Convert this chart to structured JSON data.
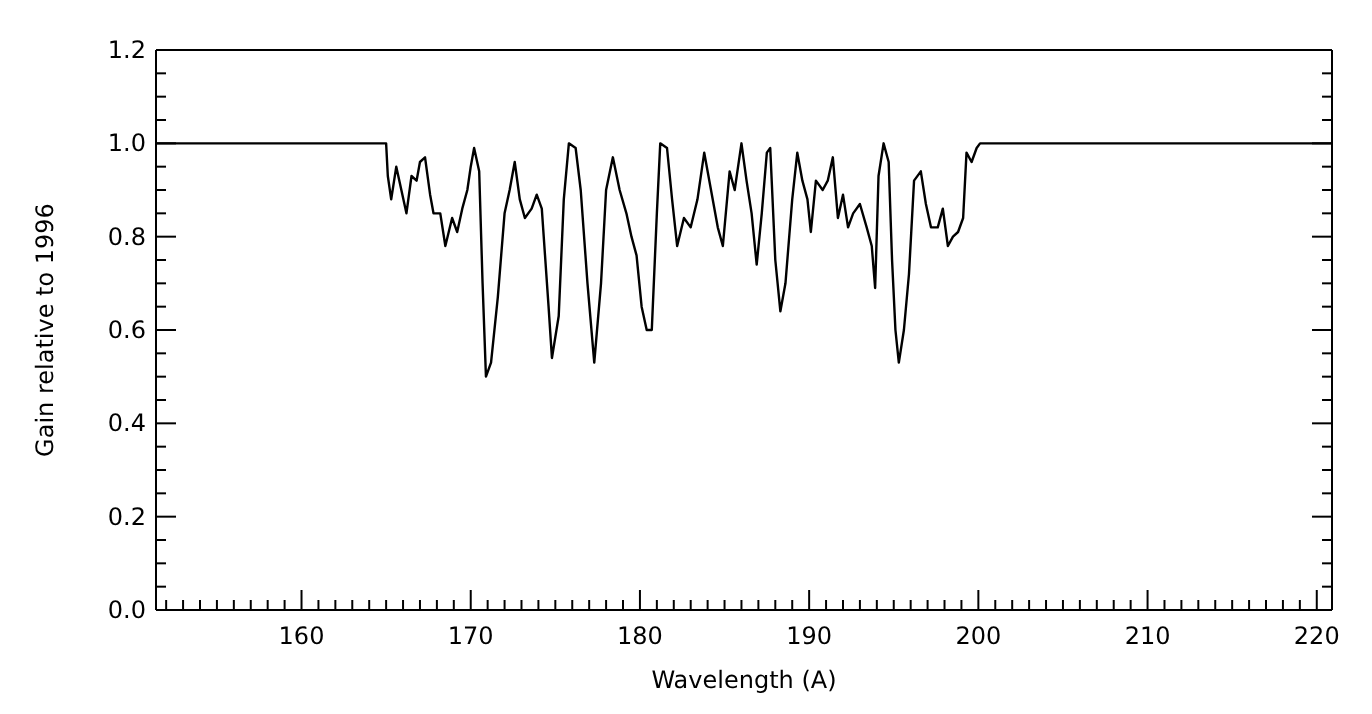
{
  "chart_data": {
    "type": "line",
    "xlabel": "Wavelength (A)",
    "ylabel": "Gain relative to 1996",
    "xlim": [
      151.4,
      220.9
    ],
    "ylim": [
      0,
      1.2
    ],
    "xticks": [
      {
        "value": 152,
        "label": null
      },
      {
        "value": 153,
        "label": null
      },
      {
        "value": 154,
        "label": null
      },
      {
        "value": 155,
        "label": null
      },
      {
        "value": 156,
        "label": null
      },
      {
        "value": 157,
        "label": null
      },
      {
        "value": 158,
        "label": null
      },
      {
        "value": 159,
        "label": null
      },
      160,
      {
        "value": 161,
        "label": null
      },
      {
        "value": 162,
        "label": null
      },
      {
        "value": 163,
        "label": null
      },
      {
        "value": 164,
        "label": null
      },
      {
        "value": 165,
        "label": null
      },
      {
        "value": 166,
        "label": null
      },
      {
        "value": 167,
        "label": null
      },
      {
        "value": 168,
        "label": null
      },
      {
        "value": 169,
        "label": null
      },
      170,
      {
        "value": 171,
        "label": null
      },
      {
        "value": 172,
        "label": null
      },
      {
        "value": 173,
        "label": null
      },
      {
        "value": 174,
        "label": null
      },
      {
        "value": 175,
        "label": null
      },
      {
        "value": 176,
        "label": null
      },
      {
        "value": 177,
        "label": null
      },
      {
        "value": 178,
        "label": null
      },
      {
        "value": 179,
        "label": null
      },
      180,
      {
        "value": 181,
        "label": null
      },
      {
        "value": 182,
        "label": null
      },
      {
        "value": 183,
        "label": null
      },
      {
        "value": 184,
        "label": null
      },
      {
        "value": 185,
        "label": null
      },
      {
        "value": 186,
        "label": null
      },
      {
        "value": 187,
        "label": null
      },
      {
        "value": 188,
        "label": null
      },
      {
        "value": 189,
        "label": null
      },
      190,
      {
        "value": 191,
        "label": null
      },
      {
        "value": 192,
        "label": null
      },
      {
        "value": 193,
        "label": null
      },
      {
        "value": 194,
        "label": null
      },
      {
        "value": 195,
        "label": null
      },
      {
        "value": 196,
        "label": null
      },
      {
        "value": 197,
        "label": null
      },
      {
        "value": 198,
        "label": null
      },
      {
        "value": 199,
        "label": null
      },
      200,
      {
        "value": 201,
        "label": null
      },
      {
        "value": 202,
        "label": null
      },
      {
        "value": 203,
        "label": null
      },
      {
        "value": 204,
        "label": null
      },
      {
        "value": 205,
        "label": null
      },
      {
        "value": 206,
        "label": null
      },
      {
        "value": 207,
        "label": null
      },
      {
        "value": 208,
        "label": null
      },
      {
        "value": 209,
        "label": null
      },
      210,
      {
        "value": 211,
        "label": null
      },
      {
        "value": 212,
        "label": null
      },
      {
        "value": 213,
        "label": null
      },
      {
        "value": 214,
        "label": null
      },
      {
        "value": 215,
        "label": null
      },
      {
        "value": 216,
        "label": null
      },
      {
        "value": 217,
        "label": null
      },
      {
        "value": 218,
        "label": null
      },
      {
        "value": 219,
        "label": null
      },
      220
    ],
    "yticks": [
      {
        "value": 0,
        "label": "0.0"
      },
      {
        "value": 0.05,
        "label": null
      },
      {
        "value": 0.1,
        "label": null
      },
      {
        "value": 0.15,
        "label": null
      },
      0.2,
      {
        "value": 0.25,
        "label": null
      },
      {
        "value": 0.3,
        "label": null
      },
      {
        "value": 0.35,
        "label": null
      },
      0.4,
      {
        "value": 0.45,
        "label": null
      },
      {
        "value": 0.5,
        "label": null
      },
      {
        "value": 0.55,
        "label": null
      },
      0.6,
      {
        "value": 0.65,
        "label": null
      },
      {
        "value": 0.7,
        "label": null
      },
      {
        "value": 0.75,
        "label": null
      },
      0.8,
      {
        "value": 0.85,
        "label": null
      },
      {
        "value": 0.9,
        "label": null
      },
      {
        "value": 0.95,
        "label": null
      },
      {
        "value": 1,
        "label": "1.0"
      },
      {
        "value": 1.05,
        "label": null
      },
      {
        "value": 1.1,
        "label": null
      },
      {
        "value": 1.15,
        "label": null
      },
      1.2
    ],
    "marker": "none",
    "line_style": "solid",
    "series": [
      {
        "color": "#000000",
        "x": [
          151.4,
          165.0,
          165.1,
          165.3,
          165.6,
          165.9,
          166.2,
          166.5,
          166.8,
          167.0,
          167.3,
          167.6,
          167.8,
          168.2,
          168.5,
          168.9,
          169.2,
          169.5,
          169.8,
          170.0,
          170.2,
          170.5,
          170.7,
          170.9,
          171.2,
          171.6,
          172.0,
          172.3,
          172.6,
          172.9,
          173.2,
          173.6,
          173.9,
          174.2,
          174.6,
          174.8,
          175.2,
          175.5,
          175.8,
          176.2,
          176.5,
          176.9,
          177.3,
          177.7,
          178.0,
          178.4,
          178.8,
          179.2,
          179.5,
          179.8,
          180.1,
          180.4,
          180.7,
          181.0,
          181.2,
          181.6,
          181.9,
          182.2,
          182.6,
          183.0,
          183.4,
          183.8,
          184.2,
          184.6,
          184.9,
          185.3,
          185.6,
          186.0,
          186.3,
          186.6,
          186.9,
          187.2,
          187.5,
          187.7,
          188.0,
          188.3,
          188.6,
          189.0,
          189.3,
          189.6,
          189.9,
          190.1,
          190.4,
          190.8,
          191.1,
          191.4,
          191.7,
          192.0,
          192.3,
          192.6,
          193.0,
          193.4,
          193.7,
          193.9,
          194.1,
          194.4,
          194.7,
          194.9,
          195.1,
          195.3,
          195.6,
          195.9,
          196.2,
          196.6,
          196.9,
          197.2,
          197.6,
          197.9,
          198.2,
          198.5,
          198.8,
          199.1,
          199.3,
          199.6,
          199.9,
          200.1,
          220.9
        ],
        "values": [
          1.0,
          1.0,
          0.93,
          0.88,
          0.95,
          0.9,
          0.85,
          0.93,
          0.92,
          0.96,
          0.97,
          0.89,
          0.85,
          0.85,
          0.78,
          0.84,
          0.81,
          0.86,
          0.9,
          0.95,
          0.99,
          0.94,
          0.7,
          0.5,
          0.53,
          0.67,
          0.85,
          0.9,
          0.96,
          0.88,
          0.84,
          0.86,
          0.89,
          0.86,
          0.65,
          0.54,
          0.63,
          0.88,
          1.0,
          0.99,
          0.9,
          0.7,
          0.53,
          0.7,
          0.9,
          0.97,
          0.9,
          0.85,
          0.8,
          0.76,
          0.65,
          0.6,
          0.6,
          0.85,
          1.0,
          0.99,
          0.88,
          0.78,
          0.84,
          0.82,
          0.88,
          0.98,
          0.9,
          0.82,
          0.78,
          0.94,
          0.9,
          1.0,
          0.92,
          0.85,
          0.74,
          0.85,
          0.98,
          0.99,
          0.75,
          0.64,
          0.7,
          0.88,
          0.98,
          0.92,
          0.88,
          0.81,
          0.92,
          0.9,
          0.92,
          0.97,
          0.84,
          0.89,
          0.82,
          0.85,
          0.87,
          0.82,
          0.78,
          0.69,
          0.93,
          1.0,
          0.96,
          0.75,
          0.6,
          0.53,
          0.6,
          0.72,
          0.92,
          0.94,
          0.87,
          0.82,
          0.82,
          0.86,
          0.78,
          0.8,
          0.81,
          0.84,
          0.98,
          0.96,
          0.99,
          1.0,
          1.0
        ]
      }
    ]
  }
}
